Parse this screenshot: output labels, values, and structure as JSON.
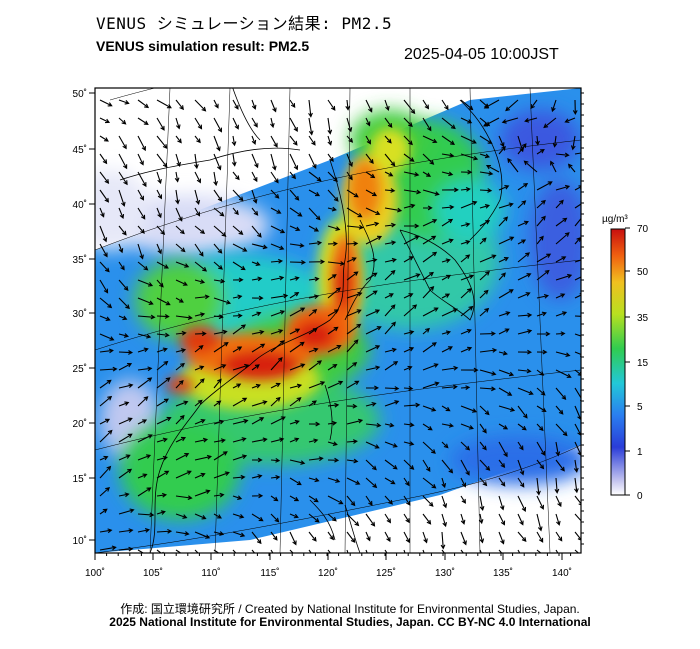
{
  "header": {
    "title_jp": "VENUS シミュレーション結果: PM2.5",
    "title_en": "VENUS simulation result: PM2.5",
    "timestamp": "2025-04-05 10:00JST"
  },
  "map": {
    "lon_ticks": [
      "100˚",
      "105˚",
      "110˚",
      "115˚",
      "120˚",
      "125˚",
      "130˚",
      "135˚",
      "140˚"
    ],
    "lat_ticks": [
      "50˚",
      "45˚",
      "40˚",
      "35˚",
      "30˚",
      "25˚",
      "20˚",
      "15˚",
      "10˚"
    ],
    "lon_range": [
      100,
      142
    ],
    "lat_range": [
      9,
      51
    ]
  },
  "legend": {
    "unit": "µg/m³",
    "labels": [
      "70",
      "50",
      "35",
      "15",
      "5",
      "1",
      "0"
    ],
    "colors": [
      "#e8e8f8",
      "#2a3dd8",
      "#2a9cf0",
      "#22d0c0",
      "#30cc40",
      "#b8e020",
      "#f0c020",
      "#f06010",
      "#c81010"
    ]
  },
  "footer": {
    "credit_jp_en": "作成: 国立環境研究所 / Created by National Institute for Environmental Studies, Japan.",
    "copyright": "2025 National Institute for Environmental Studies, Japan. CC BY-NC 4.0 International"
  }
}
